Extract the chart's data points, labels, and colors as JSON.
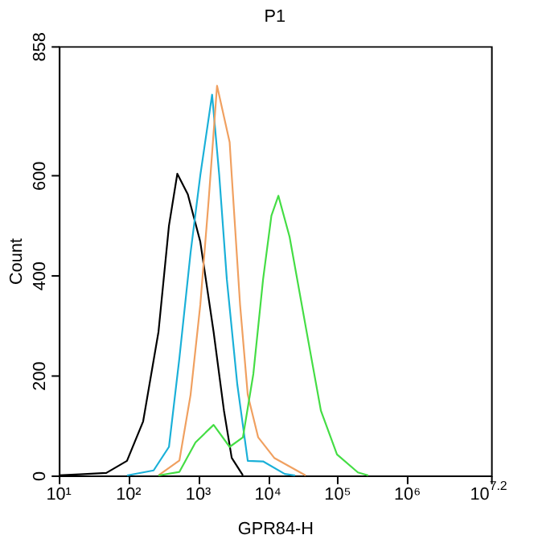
{
  "chart_data": {
    "type": "line",
    "title": "P1",
    "xlabel": "GPR84-H",
    "ylabel": "Count",
    "log": "x",
    "grid": false,
    "marker": "none",
    "line_style": "solid",
    "xlim": [
      10,
      15848932
    ],
    "ylim": [
      0,
      858
    ],
    "xticks": [
      {
        "value": 10,
        "label": "10¹"
      },
      {
        "value": 100,
        "label": "10²"
      },
      {
        "value": 1000,
        "label": "10³"
      },
      {
        "value": 10000,
        "label": "10⁴"
      },
      {
        "value": 100000,
        "label": "10⁵"
      },
      {
        "value": 1000000,
        "label": "10⁶"
      },
      {
        "value": 15848932,
        "label": "10$^{7.2}$"
      }
    ],
    "yticks": [
      0,
      200,
      400,
      600,
      858
    ],
    "series": [
      {
        "color": "#000000",
        "x": [
          10,
          20,
          48,
          95,
          162,
          269,
          380,
          501,
          708,
          1070,
          1660,
          2340,
          3020,
          4370
        ],
        "values": [
          0,
          2,
          5,
          29,
          108,
          287,
          499,
          603,
          562,
          467,
          287,
          129,
          35,
          0
        ]
      },
      {
        "color": "#1ab0d8",
        "x": [
          95,
          229,
          380,
          537,
          776,
          1070,
          1580,
          2000,
          2570,
          3630,
          5130,
          8510,
          17400,
          24500
        ],
        "values": [
          0,
          10,
          57,
          235,
          445,
          600,
          761,
          600,
          392,
          182,
          29,
          28,
          3,
          0
        ]
      },
      {
        "color": "#f0a060",
        "x": [
          269,
          537,
          776,
          1070,
          1410,
          1860,
          2820,
          3020,
          3980,
          5130,
          7240,
          12300,
          34700
        ],
        "values": [
          0,
          30,
          161,
          341,
          550,
          779,
          666,
          600,
          341,
          161,
          76,
          35,
          0
        ]
      },
      {
        "color": "#44dd44",
        "x": [
          269,
          537,
          912,
          1660,
          2820,
          4370,
          6170,
          8510,
          11200,
          14100,
          20400,
          34700,
          57500,
          97700,
          195000,
          275000
        ],
        "values": [
          0,
          7,
          66,
          101,
          57,
          76,
          203,
          392,
          519,
          559,
          477,
          298,
          129,
          42,
          6,
          0
        ]
      }
    ]
  }
}
